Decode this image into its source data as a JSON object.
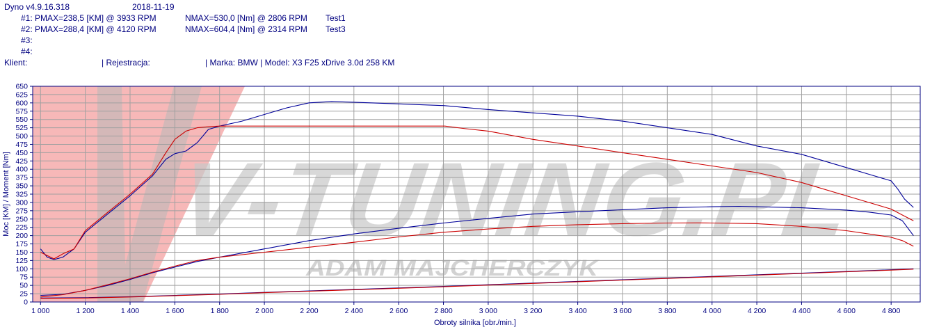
{
  "header": {
    "app": "Dyno v4.9.16.318",
    "date": "2018-11-19",
    "runs": [
      {
        "label": "#1:",
        "pmax": "PMAX=238,5 [KM] @ 3933 RPM",
        "nmax": "NMAX=530,0 [Nm] @ 2806 RPM",
        "name": "Test1"
      },
      {
        "label": "#2:",
        "pmax": "PMAX=288,4 [KM] @ 4120 RPM",
        "nmax": "NMAX=604,4 [Nm] @ 2314 RPM",
        "name": "Test3"
      },
      {
        "label": "#3:",
        "pmax": "",
        "nmax": "",
        "name": ""
      },
      {
        "label": "#4:",
        "pmax": "",
        "nmax": "",
        "name": ""
      }
    ],
    "client_label": "Klient:",
    "registration_label": "| Rejestracja:",
    "vehicle": "| Marka: BMW | Model: X3 F25 xDrive 3.0d 258 KM"
  },
  "watermark": {
    "brand": "V-TUNING.PL",
    "author": "ADAM MAJCHERCZYK"
  },
  "chart_data": {
    "type": "line",
    "xlabel": "Obroty silnika [obr./min.]",
    "ylabel": "Moc [KM] / Moment [Nm]",
    "xlim": [
      965,
      4930
    ],
    "ylim": [
      0,
      650
    ],
    "x_ticks": [
      1000,
      1200,
      1400,
      1600,
      1800,
      2000,
      2200,
      2400,
      2600,
      2800,
      3000,
      3200,
      3400,
      3600,
      3800,
      4000,
      4200,
      4400,
      4600,
      4800
    ],
    "x_tick_labels": [
      "1 000",
      "1 200",
      "1 400",
      "1 600",
      "1 800",
      "2 000",
      "2 200",
      "2 400",
      "2 600",
      "2 800",
      "3 000",
      "3 200",
      "3 400",
      "3 600",
      "3 800",
      "4 000",
      "4 200",
      "4 400",
      "4 600",
      "4 800"
    ],
    "y_ticks": [
      0,
      25,
      50,
      75,
      100,
      125,
      150,
      175,
      200,
      225,
      250,
      275,
      300,
      325,
      350,
      375,
      400,
      425,
      450,
      475,
      500,
      525,
      550,
      575,
      600,
      625,
      650
    ],
    "grid": true,
    "colors": {
      "run1": "#cc0000",
      "run2": "#000099",
      "grid": "#a0a0a0",
      "frame": "#000080",
      "text": "#000080"
    },
    "series": [
      {
        "run": "#2",
        "quantity": "torque",
        "color": "#000099",
        "x": [
          1000,
          1030,
          1060,
          1100,
          1150,
          1200,
          1300,
          1400,
          1500,
          1560,
          1600,
          1650,
          1700,
          1750,
          1800,
          1900,
          2000,
          2100,
          2200,
          2300,
          2400,
          2600,
          2800,
          3000,
          3200,
          3400,
          3600,
          3800,
          4000,
          4200,
          4400,
          4600,
          4700,
          4800,
          4830,
          4860,
          4900
        ],
        "y": [
          160,
          135,
          128,
          135,
          160,
          210,
          265,
          320,
          380,
          430,
          447,
          455,
          480,
          520,
          530,
          545,
          565,
          585,
          600,
          604,
          602,
          597,
          592,
          580,
          570,
          560,
          545,
          525,
          505,
          470,
          445,
          405,
          385,
          365,
          340,
          310,
          285
        ]
      },
      {
        "run": "#1",
        "quantity": "torque",
        "color": "#cc0000",
        "x": [
          1000,
          1030,
          1060,
          1100,
          1150,
          1200,
          1300,
          1400,
          1500,
          1560,
          1600,
          1650,
          1700,
          1750,
          1800,
          2000,
          2200,
          2400,
          2600,
          2806,
          2900,
          3000,
          3200,
          3400,
          3600,
          3800,
          4000,
          4200,
          4400,
          4600,
          4800,
          4850,
          4900
        ],
        "y": [
          150,
          140,
          130,
          145,
          160,
          215,
          270,
          325,
          385,
          450,
          490,
          515,
          525,
          528,
          530,
          530,
          530,
          530,
          530,
          530,
          522,
          515,
          490,
          470,
          450,
          430,
          410,
          390,
          360,
          320,
          280,
          262,
          245
        ]
      },
      {
        "run": "#2",
        "quantity": "power",
        "color": "#000099",
        "x": [
          1000,
          1100,
          1200,
          1300,
          1400,
          1500,
          1600,
          1700,
          1800,
          2000,
          2200,
          2400,
          2600,
          2800,
          3000,
          3200,
          3400,
          3600,
          3800,
          4000,
          4120,
          4200,
          4400,
          4600,
          4700,
          4800,
          4850,
          4900
        ],
        "y": [
          20,
          23,
          35,
          50,
          68,
          88,
          105,
          122,
          135,
          160,
          185,
          205,
          222,
          238,
          252,
          265,
          272,
          278,
          284,
          287,
          288.4,
          287,
          284,
          277,
          271,
          262,
          245,
          200
        ]
      },
      {
        "run": "#1",
        "quantity": "power",
        "color": "#cc0000",
        "x": [
          1000,
          1100,
          1200,
          1300,
          1400,
          1500,
          1600,
          1700,
          1800,
          2000,
          2200,
          2400,
          2600,
          2800,
          3000,
          3200,
          3400,
          3600,
          3800,
          3933,
          4000,
          4200,
          4400,
          4600,
          4700,
          4800,
          4850,
          4900
        ],
        "y": [
          15,
          22,
          35,
          52,
          70,
          90,
          108,
          125,
          135,
          150,
          165,
          180,
          196,
          210,
          220,
          228,
          233,
          236,
          238,
          238.5,
          238,
          236,
          228,
          215,
          205,
          195,
          185,
          168
        ]
      },
      {
        "run": "#2",
        "quantity": "auxiliary",
        "color": "#000099",
        "x": [
          1000,
          1200,
          1400,
          1600,
          1800,
          2000,
          2400,
          2800,
          3200,
          3600,
          4000,
          4400,
          4800,
          4900
        ],
        "y": [
          12,
          13,
          16,
          20,
          24,
          29,
          38,
          47,
          57,
          67,
          77,
          87,
          97,
          100
        ]
      },
      {
        "run": "#1",
        "quantity": "auxiliary",
        "color": "#cc0000",
        "x": [
          1000,
          1200,
          1400,
          1600,
          1800,
          2000,
          2400,
          2800,
          3200,
          3600,
          4000,
          4400,
          4800,
          4900
        ],
        "y": [
          11,
          12,
          15,
          19,
          23,
          28,
          37,
          46,
          56,
          66,
          76,
          86,
          96,
          99
        ]
      }
    ]
  }
}
